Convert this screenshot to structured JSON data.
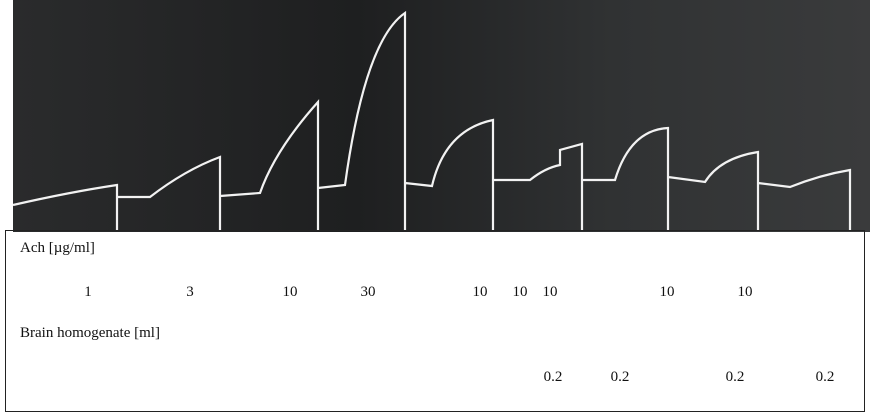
{
  "table": {
    "ach_label": "Ach [µg/ml]",
    "ach_doses": [
      1,
      3,
      10,
      30,
      10,
      10,
      10,
      10,
      10
    ],
    "brain_label": "Brain homogenate [ml]",
    "brain_doses": [
      0.2,
      0.2,
      0.2,
      0.2
    ]
  }
}
